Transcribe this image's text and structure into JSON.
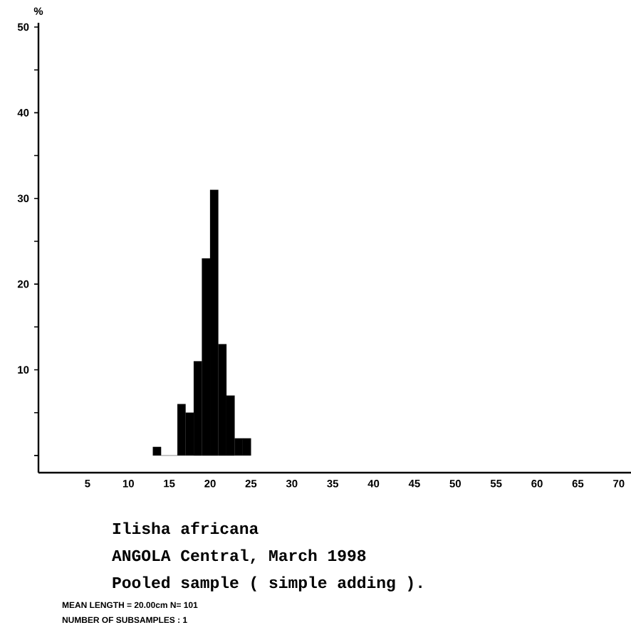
{
  "chart_data": {
    "type": "histogram",
    "title": "Ilisha africana",
    "subtitle": "ANGOLA Central, March 1998",
    "ylabel": "%",
    "annotations": [
      "Pooled sample ( simple adding ).",
      "MEAN LENGTH = 20.00cm  N=  101",
      "NUMBER OF SUBSAMPLES :  1"
    ],
    "bins": [
      13,
      14,
      15,
      16,
      17,
      18,
      19,
      20,
      21,
      22,
      23,
      24,
      25
    ],
    "values": [
      1,
      0,
      0,
      6,
      5,
      11,
      23,
      31,
      13,
      7,
      2,
      2
    ],
    "color": "#000000",
    "xlim": [
      -1,
      71.5
    ],
    "ylim": [
      -2,
      50.5
    ],
    "xticks": [
      5,
      10,
      15,
      20,
      25,
      30,
      35,
      40,
      45,
      50,
      55,
      60,
      65,
      70
    ],
    "yticks": [
      {
        "value": 0,
        "label": null
      },
      {
        "value": 5,
        "label": null
      },
      10,
      {
        "value": 15,
        "label": null
      },
      20,
      {
        "value": 25,
        "label": null
      },
      30,
      {
        "value": 35,
        "label": null
      },
      40,
      {
        "value": 45,
        "label": null
      },
      50
    ]
  }
}
